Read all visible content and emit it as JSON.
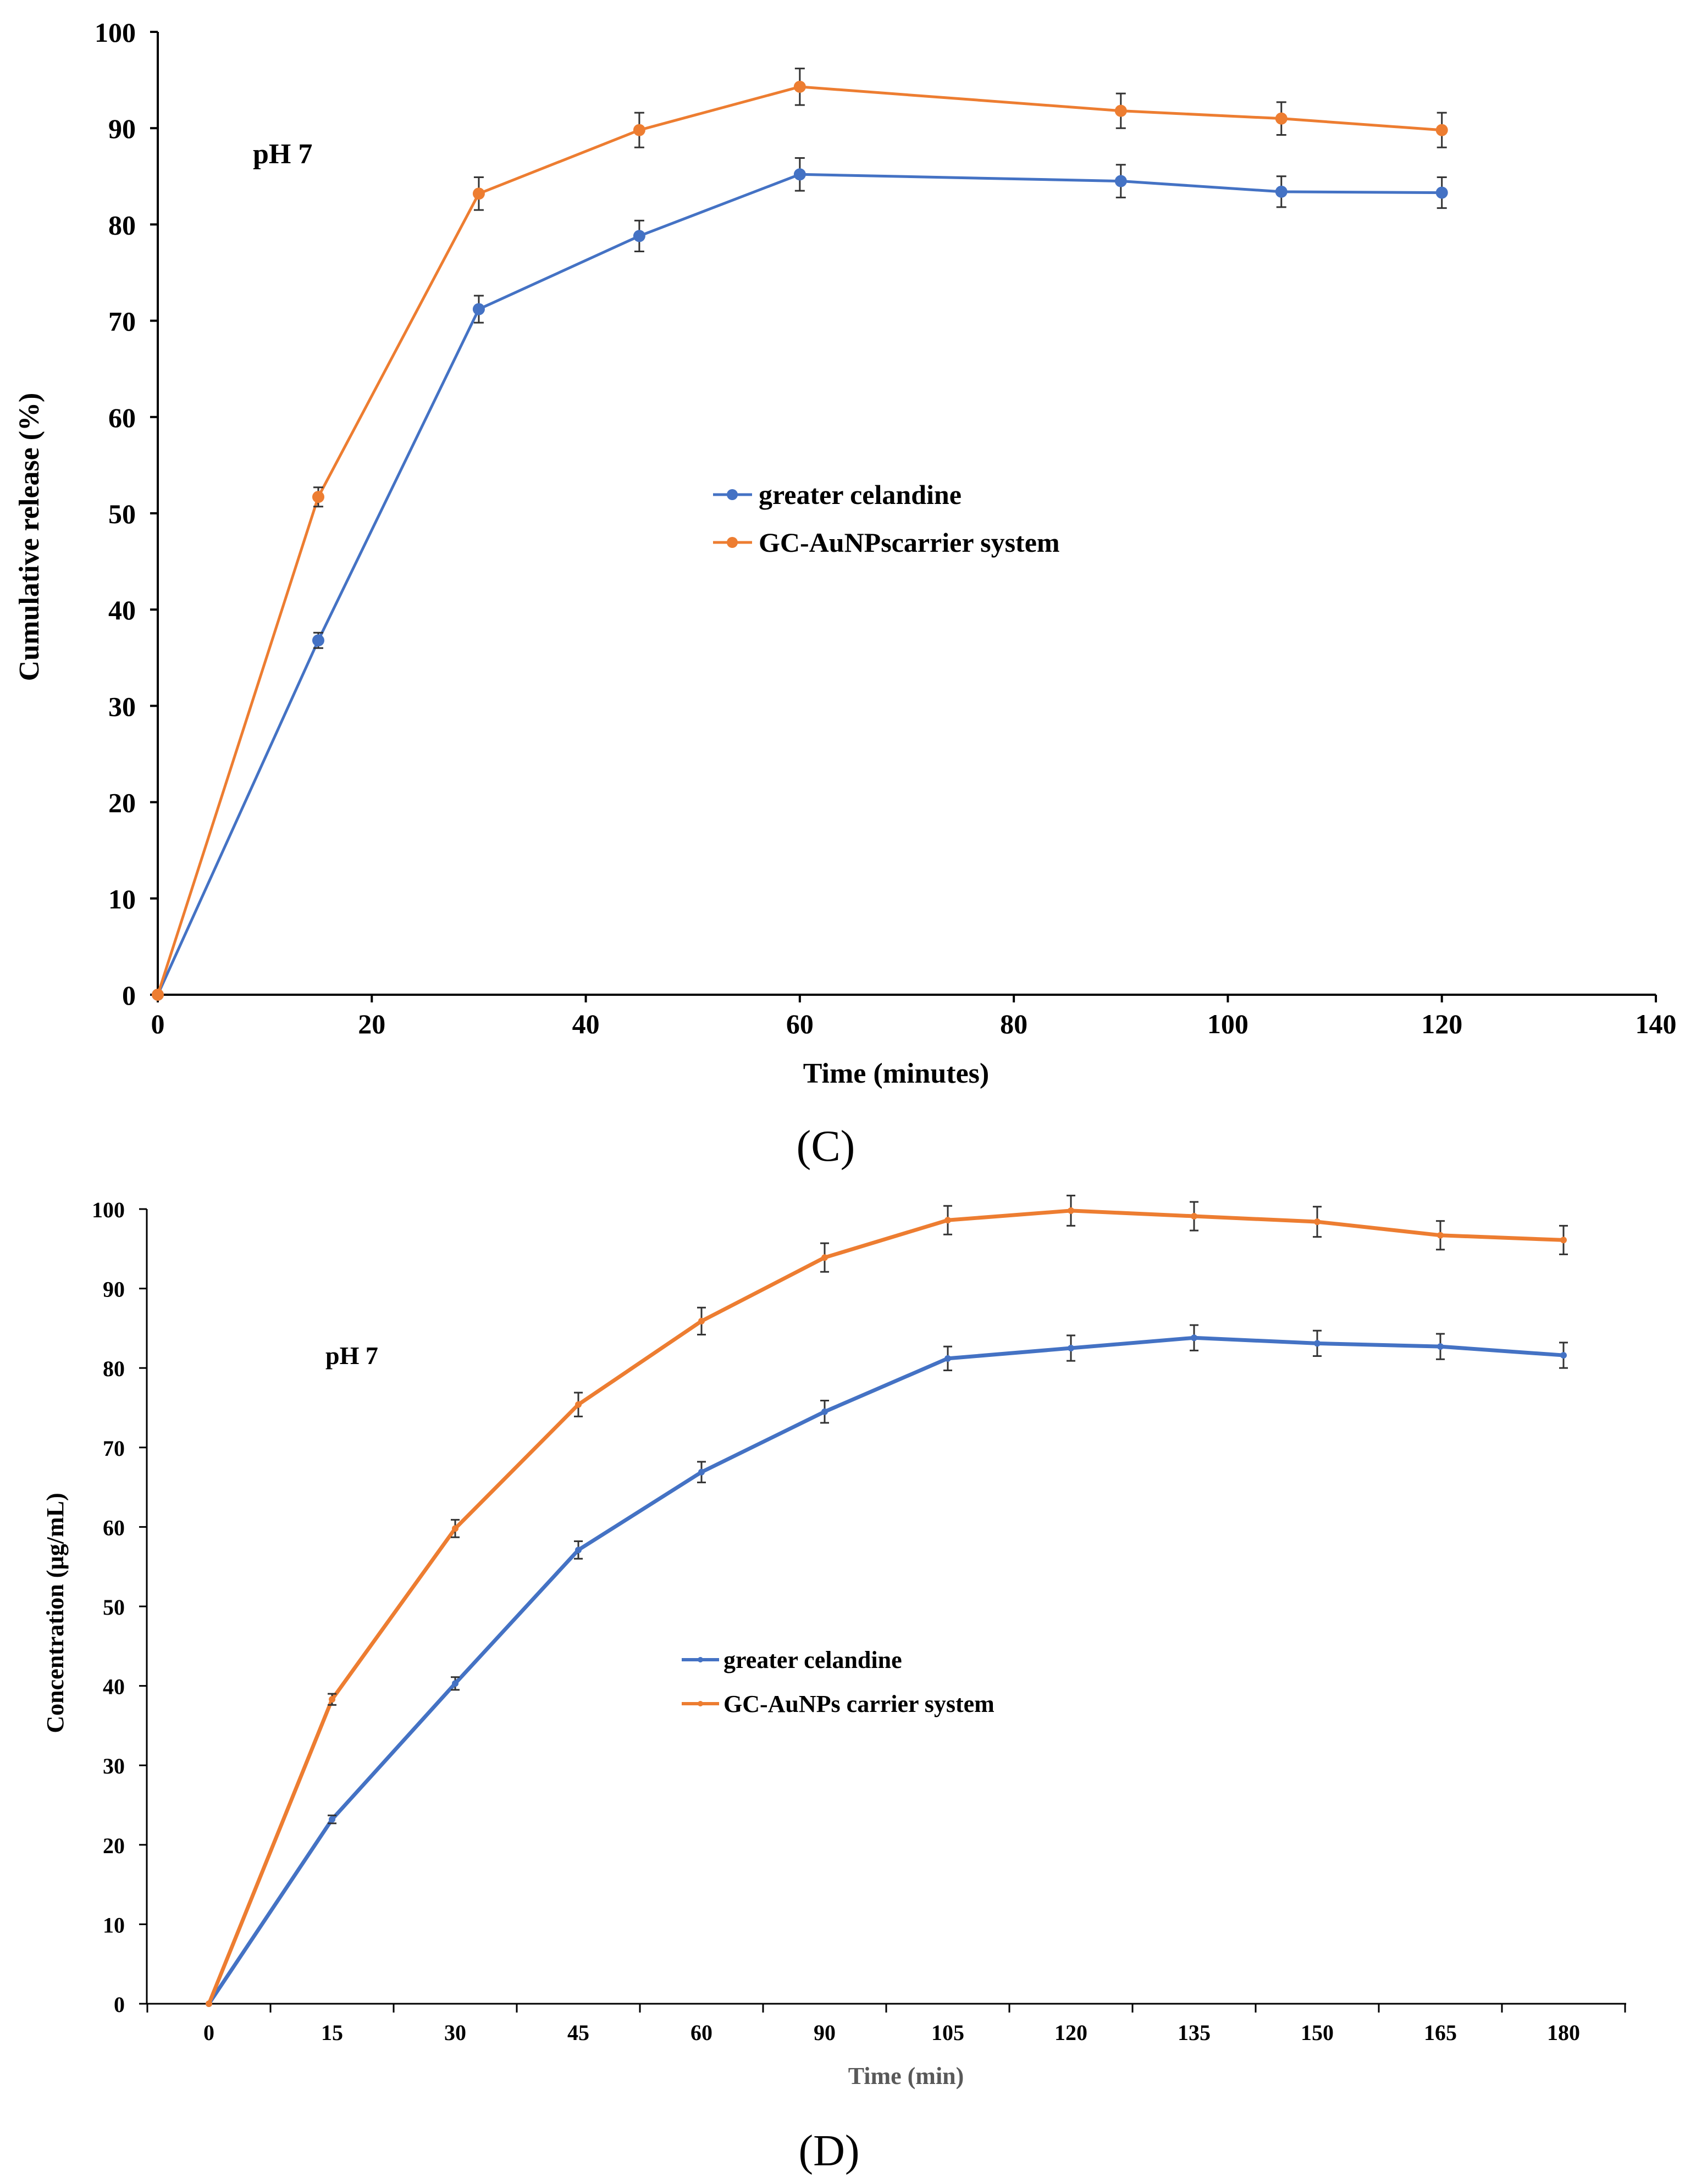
{
  "colors": {
    "series1": "#4472C4",
    "series2": "#ED7D31",
    "axis": "#000000",
    "errorbar": "#333333"
  },
  "chart_data": [
    {
      "type": "line",
      "panel_label": "(C)",
      "annotation": "pH 7",
      "xlabel": "Time (minutes)",
      "ylabel": "Cumulative release (%)",
      "xlim": [
        0,
        140
      ],
      "ylim": [
        0,
        100
      ],
      "xticks": [
        0,
        20,
        40,
        60,
        80,
        100,
        120,
        140
      ],
      "yticks": [
        0,
        10,
        20,
        30,
        40,
        50,
        60,
        70,
        80,
        90,
        100
      ],
      "grid": false,
      "legend_position": "center",
      "x": [
        0,
        15,
        30,
        45,
        60,
        90,
        105,
        120
      ],
      "series": [
        {
          "name": "greater celandine",
          "color": "#4472C4",
          "values": [
            0,
            36.8,
            71.2,
            78.8,
            85.2,
            84.5,
            83.4,
            83.3
          ],
          "errors": [
            0,
            0.8,
            1.4,
            1.6,
            1.7,
            1.7,
            1.6,
            1.6
          ]
        },
        {
          "name": "GC-AuNPscarrier system",
          "color": "#ED7D31",
          "values": [
            0,
            51.7,
            83.2,
            89.8,
            94.3,
            91.8,
            91.0,
            89.8
          ],
          "errors": [
            0,
            1.0,
            1.7,
            1.8,
            1.9,
            1.8,
            1.7,
            1.8
          ]
        }
      ]
    },
    {
      "type": "line",
      "panel_label": "(D)",
      "annotation": "pH 7",
      "xlabel": "Time (min)",
      "ylabel": "Concentration (µg/mL)",
      "categories": [
        "0",
        "15",
        "30",
        "45",
        "60",
        "90",
        "105",
        "120",
        "135",
        "150",
        "165",
        "180"
      ],
      "ylim": [
        0,
        100
      ],
      "yticks": [
        0,
        10,
        20,
        30,
        40,
        50,
        60,
        70,
        80,
        90,
        100
      ],
      "grid": false,
      "legend_position": "center",
      "series": [
        {
          "name": "greater celandine",
          "color": "#4472C4",
          "values": [
            0,
            23.2,
            40.3,
            57.1,
            66.9,
            74.5,
            81.2,
            82.5,
            83.8,
            83.1,
            82.7,
            81.6
          ],
          "errors": [
            0,
            0.5,
            0.8,
            1.1,
            1.3,
            1.4,
            1.5,
            1.6,
            1.6,
            1.6,
            1.6,
            1.6
          ]
        },
        {
          "name": "GC-AuNPs carrier system",
          "color": "#ED7D31",
          "values": [
            0,
            38.3,
            59.8,
            75.4,
            85.9,
            93.9,
            98.6,
            99.8,
            99.1,
            98.4,
            96.7,
            96.1
          ],
          "errors": [
            0,
            0.7,
            1.1,
            1.5,
            1.7,
            1.8,
            1.8,
            1.9,
            1.8,
            1.9,
            1.8,
            1.8
          ]
        }
      ]
    }
  ]
}
